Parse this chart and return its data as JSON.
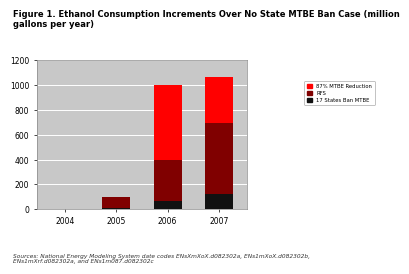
{
  "title": "Figure 1. Ethanol Consumption Increments Over No State MTBE Ban Case (million\ngallons per year)",
  "years": [
    "2004",
    "2005",
    "2006",
    "2007"
  ],
  "series": {
    "87pct_MTBE_Reduction": [
      0,
      0,
      600,
      370
    ],
    "RFS": [
      0,
      85,
      335,
      575
    ],
    "17_States_Ban_MTBE": [
      0,
      12,
      65,
      120
    ]
  },
  "colors": {
    "87pct_MTBE_Reduction": "#ff0000",
    "RFS": "#800000",
    "17_States_Ban_MTBE": "#111111"
  },
  "legend_labels": [
    "87% MTBE Reduction",
    "RFS",
    "17 States Ban MTBE"
  ],
  "ylim": [
    0,
    1200
  ],
  "yticks": [
    0,
    200,
    400,
    600,
    800,
    1000,
    1200
  ],
  "bar_width": 0.55,
  "plot_bg": "#c8c8c8",
  "source_text": "Sources: National Energy Modeling System date codes ENsXmXoX.d082302a, ENs1mXoX.d082302b,\nENs1mXrf.d082302a, and ENs1m087.d082302c"
}
